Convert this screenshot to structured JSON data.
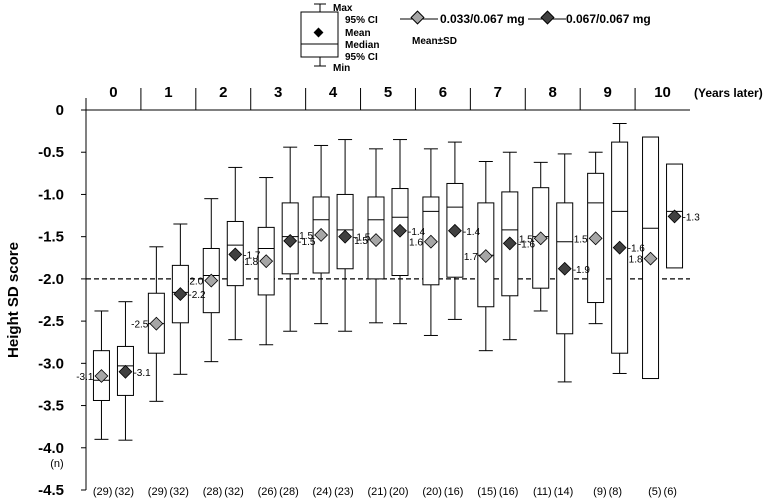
{
  "legend": {
    "key": {
      "max": "Max",
      "ci_upper": "95% CI",
      "mean": "Mean",
      "median": "Median",
      "ci_lower": "95% CI",
      "min": "Min"
    },
    "series_a": "0.033/0.067 mg",
    "series_b": "0.067/0.067 mg",
    "note": "Mean±SD"
  },
  "n_header": "(n)",
  "chart_data": {
    "type": "box",
    "xlabel": "",
    "x_unit": "(Years later)",
    "ylabel": "Height SD score",
    "ylim": [
      -4.5,
      0
    ],
    "yticks": [
      0,
      -0.5,
      -1.0,
      -1.5,
      -2.0,
      -2.5,
      -3.0,
      -3.5,
      -4.0,
      -4.5
    ],
    "ytick_labels": [
      "0",
      "-0.5",
      "-1.0",
      "-1.5",
      "-2.0",
      "-2.5",
      "-3.0",
      "-3.5",
      "-4.0",
      "-4.5"
    ],
    "reference_line": -2.0,
    "categories": [
      "0",
      "1",
      "2",
      "3",
      "4",
      "5",
      "6",
      "7",
      "8",
      "9",
      "10"
    ],
    "series": [
      {
        "name": "0.033/0.067 mg",
        "color": "#a6a6a6",
        "n": [
          "(29)",
          "(29)",
          "(28)",
          "(26)",
          "(24)",
          "(21)",
          "(20)",
          "(15)",
          "(11)",
          "(9)",
          "(5)"
        ],
        "mean": [
          -3.15,
          -2.53,
          -2.02,
          -1.79,
          -1.48,
          -1.54,
          -1.56,
          -1.73,
          -1.52,
          -1.52,
          -1.76
        ],
        "mean_labels": [
          "-3.1",
          "-2.5",
          "-2.0",
          "-1.8",
          "-1.5",
          "-1.5",
          "-1.6",
          "-1.7",
          "-1.5",
          "-1.5",
          "-1.8"
        ],
        "box_upper": [
          -2.85,
          -2.17,
          -1.64,
          -1.39,
          -1.03,
          -1.03,
          -1.03,
          -1.1,
          -0.92,
          -0.75,
          -0.32
        ],
        "median": [
          -3.2,
          -2.53,
          -1.96,
          -1.64,
          -1.3,
          -1.3,
          -1.2,
          -1.72,
          -1.5,
          -1.1,
          -1.4
        ],
        "box_lower": [
          -3.44,
          -2.88,
          -2.4,
          -2.19,
          -1.93,
          -2.0,
          -2.07,
          -2.33,
          -2.11,
          -2.28,
          -3.18
        ],
        "max": [
          -2.38,
          -1.62,
          -1.05,
          -0.8,
          -0.42,
          -0.46,
          -0.46,
          -0.61,
          -0.62,
          -0.5,
          null
        ],
        "min": [
          -3.9,
          -3.45,
          -2.98,
          -2.78,
          -2.53,
          -2.52,
          -2.67,
          -2.85,
          -2.38,
          -2.53,
          -2.93
        ]
      },
      {
        "name": "0.067/0.067 mg",
        "color": "#404040",
        "n": [
          "(32)",
          "(32)",
          "(32)",
          "(28)",
          "(23)",
          "(20)",
          "(16)",
          "(16)",
          "(14)",
          "(8)",
          "(6)"
        ],
        "mean": [
          -3.1,
          -2.18,
          -1.71,
          -1.55,
          -1.5,
          -1.43,
          -1.43,
          -1.58,
          -1.88,
          -1.63,
          -1.26
        ],
        "mean_labels": [
          "-3.1",
          "-2.2",
          "-1.7",
          "-1.5",
          "-1.5",
          "-1.4",
          "-1.4",
          "-1.6",
          "-1.9",
          "-1.6",
          "-1.3"
        ],
        "box_upper": [
          -2.8,
          -1.84,
          -1.32,
          -1.1,
          -1.0,
          -0.93,
          -0.87,
          -0.97,
          -1.1,
          -0.38,
          -0.64
        ],
        "median": [
          -3.03,
          -2.16,
          -1.6,
          -1.5,
          -1.42,
          -1.27,
          -1.15,
          -1.42,
          -1.56,
          -1.2,
          -1.2
        ],
        "box_lower": [
          -3.38,
          -2.52,
          -2.08,
          -1.94,
          -1.88,
          -1.96,
          -1.98,
          -2.2,
          -2.65,
          -2.88,
          -1.87
        ],
        "max": [
          -2.27,
          -1.35,
          -0.68,
          -0.44,
          -0.35,
          -0.35,
          -0.38,
          -0.5,
          -0.52,
          -0.16,
          null
        ],
        "min": [
          -3.91,
          -3.13,
          -2.72,
          -2.62,
          -2.62,
          -2.53,
          -2.48,
          -2.72,
          -3.22,
          -3.12,
          null
        ]
      }
    ]
  }
}
